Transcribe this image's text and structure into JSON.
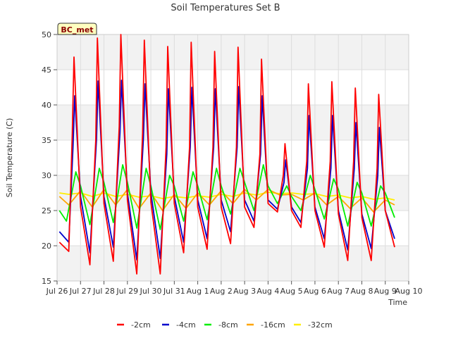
{
  "chart_data": {
    "type": "line",
    "title": "Soil Temperatures Set B",
    "xlabel": "Time",
    "ylabel": "Soil Temperature (C)",
    "station_label": "BC_met",
    "ylim": [
      15,
      50
    ],
    "yticks": [
      15,
      20,
      25,
      30,
      35,
      40,
      45,
      50
    ],
    "xlim": [
      0,
      15
    ],
    "xticks": [
      {
        "pos": 0,
        "label": "Jul 26"
      },
      {
        "pos": 1,
        "label": "Jul 27"
      },
      {
        "pos": 2,
        "label": "Jul 28"
      },
      {
        "pos": 3,
        "label": "Jul 29"
      },
      {
        "pos": 4,
        "label": "Jul 30"
      },
      {
        "pos": 5,
        "label": "Jul 31"
      },
      {
        "pos": 6,
        "label": "Aug 1"
      },
      {
        "pos": 7,
        "label": "Aug 2"
      },
      {
        "pos": 8,
        "label": "Aug 3"
      },
      {
        "pos": 9,
        "label": "Aug 4"
      },
      {
        "pos": 10,
        "label": "Aug 5"
      },
      {
        "pos": 11,
        "label": "Aug 6"
      },
      {
        "pos": 12,
        "label": "Aug 7"
      },
      {
        "pos": 13,
        "label": "Aug 8"
      },
      {
        "pos": 14,
        "label": "Aug 9"
      },
      {
        "pos": 15,
        "label": "Aug 10"
      }
    ],
    "grid": true,
    "legend_position": "bottom",
    "series": [
      {
        "name": "-2cm",
        "color": "#ff0000",
        "x": [
          0.1,
          0.5,
          0.65,
          0.72,
          1.0,
          1.4,
          1.65,
          1.72,
          2.0,
          2.4,
          2.65,
          2.72,
          3.0,
          3.4,
          3.65,
          3.72,
          4.0,
          4.4,
          4.65,
          4.72,
          5.0,
          5.4,
          5.65,
          5.72,
          6.0,
          6.4,
          6.65,
          6.72,
          7.0,
          7.4,
          7.65,
          7.72,
          8.0,
          8.4,
          8.65,
          8.72,
          9.0,
          9.4,
          9.65,
          9.72,
          10.0,
          10.4,
          10.65,
          10.72,
          11.0,
          11.4,
          11.65,
          11.72,
          12.0,
          12.4,
          12.65,
          12.72,
          13.0,
          13.4,
          13.65,
          13.72,
          14.0,
          14.4
        ],
        "y": [
          20.5,
          19.2,
          36.0,
          46.8,
          25.5,
          17.3,
          35.0,
          49.5,
          26.0,
          17.8,
          37.0,
          50.0,
          26.5,
          16.0,
          36.0,
          49.2,
          26.2,
          16.0,
          34.0,
          48.3,
          26.0,
          19.0,
          34.0,
          48.9,
          25.5,
          19.5,
          34.0,
          47.6,
          25.5,
          20.3,
          34.0,
          48.2,
          25.5,
          22.6,
          33.0,
          46.5,
          26.0,
          24.8,
          30.0,
          34.5,
          25.0,
          22.6,
          32.0,
          43.0,
          25.0,
          19.8,
          32.0,
          43.3,
          24.5,
          17.9,
          32.0,
          42.4,
          24.0,
          17.9,
          31.0,
          41.5,
          25.0,
          19.8
        ]
      },
      {
        "name": "-4cm",
        "color": "#0000cc",
        "x": [
          0.1,
          0.5,
          0.68,
          0.75,
          1.0,
          1.4,
          1.68,
          1.75,
          2.0,
          2.4,
          2.68,
          2.75,
          3.0,
          3.4,
          3.68,
          3.75,
          4.0,
          4.4,
          4.68,
          4.75,
          5.0,
          5.4,
          5.68,
          5.75,
          6.0,
          6.4,
          6.68,
          6.75,
          7.0,
          7.4,
          7.68,
          7.75,
          8.0,
          8.4,
          8.68,
          8.75,
          9.0,
          9.4,
          9.68,
          9.75,
          10.0,
          10.4,
          10.68,
          10.75,
          11.0,
          11.4,
          11.68,
          11.75,
          12.0,
          12.4,
          12.68,
          12.75,
          13.0,
          13.4,
          13.68,
          13.75,
          14.0,
          14.4
        ],
        "y": [
          22.0,
          20.5,
          34.0,
          41.3,
          27.0,
          19.0,
          35.0,
          43.4,
          27.0,
          19.8,
          36.0,
          43.5,
          27.5,
          18.0,
          35.0,
          43.0,
          27.5,
          18.2,
          33.0,
          42.3,
          27.0,
          20.5,
          34.0,
          42.5,
          26.5,
          21.0,
          34.0,
          42.3,
          26.5,
          22.0,
          34.0,
          42.6,
          26.5,
          23.5,
          33.0,
          41.3,
          26.5,
          25.2,
          29.0,
          32.2,
          25.5,
          23.3,
          31.0,
          38.5,
          25.5,
          21.0,
          31.0,
          38.5,
          25.0,
          19.4,
          31.0,
          37.5,
          24.5,
          19.6,
          30.0,
          36.8,
          25.0,
          21.0
        ]
      },
      {
        "name": "-8cm",
        "color": "#00ee00",
        "x": [
          0.1,
          0.4,
          0.8,
          1.0,
          1.4,
          1.8,
          2.0,
          2.4,
          2.8,
          3.0,
          3.4,
          3.8,
          4.0,
          4.4,
          4.8,
          5.0,
          5.4,
          5.8,
          6.0,
          6.4,
          6.8,
          7.0,
          7.4,
          7.8,
          8.0,
          8.4,
          8.8,
          9.0,
          9.4,
          9.8,
          10.0,
          10.4,
          10.8,
          11.0,
          11.4,
          11.8,
          12.0,
          12.4,
          12.8,
          13.0,
          13.4,
          13.8,
          14.0,
          14.4
        ],
        "y": [
          25.0,
          23.5,
          30.5,
          28.5,
          23.0,
          31.0,
          29.0,
          23.3,
          31.5,
          29.0,
          22.5,
          31.0,
          28.5,
          22.3,
          30.0,
          28.5,
          23.5,
          30.5,
          28.5,
          23.7,
          31.0,
          28.5,
          24.5,
          31.0,
          29.0,
          25.0,
          31.5,
          28.5,
          26.0,
          28.5,
          27.0,
          25.0,
          30.0,
          28.0,
          23.8,
          29.5,
          28.0,
          22.8,
          29.0,
          27.5,
          22.8,
          28.5,
          27.5,
          24.0
        ]
      },
      {
        "name": "-16cm",
        "color": "#ffa500",
        "x": [
          0.1,
          0.5,
          1.0,
          1.5,
          2.0,
          2.5,
          3.0,
          3.5,
          4.0,
          4.5,
          5.0,
          5.5,
          6.0,
          6.5,
          7.0,
          7.5,
          8.0,
          8.5,
          9.0,
          9.5,
          10.0,
          10.5,
          11.0,
          11.5,
          12.0,
          12.5,
          13.0,
          13.5,
          14.0,
          14.4
        ],
        "y": [
          27.0,
          25.8,
          27.8,
          25.5,
          28.0,
          25.8,
          28.0,
          25.3,
          27.5,
          25.0,
          27.3,
          25.3,
          27.5,
          25.8,
          27.8,
          26.0,
          28.0,
          26.5,
          28.0,
          27.2,
          27.3,
          26.5,
          27.5,
          25.8,
          27.0,
          25.3,
          26.8,
          24.8,
          26.5,
          25.8
        ]
      },
      {
        "name": "-32cm",
        "color": "#ffee00",
        "x": [
          0.1,
          0.5,
          1.0,
          1.5,
          2.0,
          2.5,
          3.0,
          3.5,
          4.0,
          4.5,
          5.0,
          5.5,
          6.0,
          6.5,
          7.0,
          7.5,
          8.0,
          8.5,
          9.0,
          9.5,
          10.0,
          10.5,
          11.0,
          11.5,
          12.0,
          12.5,
          13.0,
          13.5,
          14.0,
          14.4
        ],
        "y": [
          27.5,
          27.3,
          27.5,
          27.0,
          27.5,
          27.0,
          27.3,
          26.9,
          27.1,
          26.7,
          27.0,
          26.8,
          27.1,
          26.9,
          27.3,
          27.0,
          27.5,
          27.2,
          27.6,
          27.4,
          27.5,
          27.3,
          27.4,
          27.0,
          27.2,
          26.8,
          27.0,
          26.6,
          26.8,
          26.5
        ]
      }
    ]
  }
}
